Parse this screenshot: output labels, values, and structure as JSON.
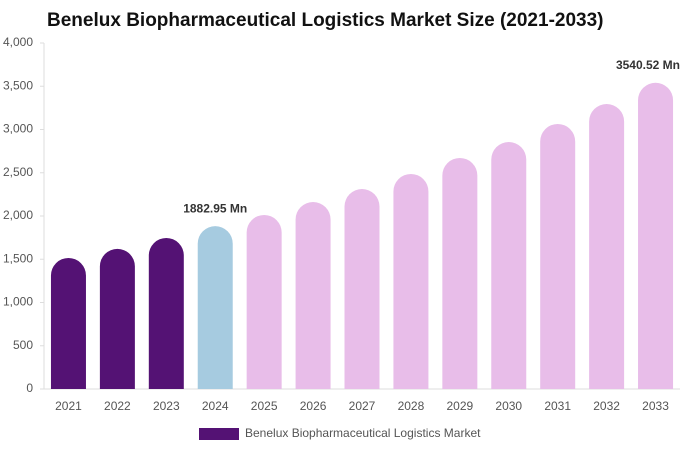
{
  "chart_data": {
    "type": "bar",
    "title": "Benelux Biopharmaceutical Logistics Market Size (2021-2033)",
    "categories": [
      "2021",
      "2022",
      "2023",
      "2024",
      "2025",
      "2026",
      "2027",
      "2028",
      "2029",
      "2030",
      "2031",
      "2032",
      "2033"
    ],
    "series": [
      {
        "name": "Benelux Biopharmaceutical Logistics Market",
        "color": "#541274",
        "values": [
          1515,
          1620,
          1746,
          1882.95,
          2012,
          2162,
          2312,
          2486,
          2671,
          2855,
          3064,
          3295,
          3540.52
        ],
        "colors": [
          "#541274",
          "#541274",
          "#541274",
          "#a6cbe0",
          "#e8bde9",
          "#e8bde9",
          "#e8bde9",
          "#e8bde9",
          "#e8bde9",
          "#e8bde9",
          "#e8bde9",
          "#e8bde9",
          "#e8bde9"
        ],
        "value_labels": [
          null,
          null,
          null,
          "1882.95 Mn",
          null,
          null,
          null,
          null,
          null,
          null,
          null,
          null,
          "3540.52 Mn"
        ]
      }
    ],
    "ylim": [
      0,
      4000
    ],
    "yticks": [
      0,
      500,
      {
        "value": 1000,
        "label": "1,000"
      },
      {
        "value": 1500,
        "label": "1,500"
      },
      {
        "value": 2000,
        "label": "2,000"
      },
      {
        "value": 2500,
        "label": "2,500"
      },
      {
        "value": 3000,
        "label": "3,000"
      },
      {
        "value": 3500,
        "label": "3,500"
      },
      {
        "value": 4000,
        "label": "4,000"
      }
    ],
    "grid": false,
    "legend": "bottom"
  }
}
